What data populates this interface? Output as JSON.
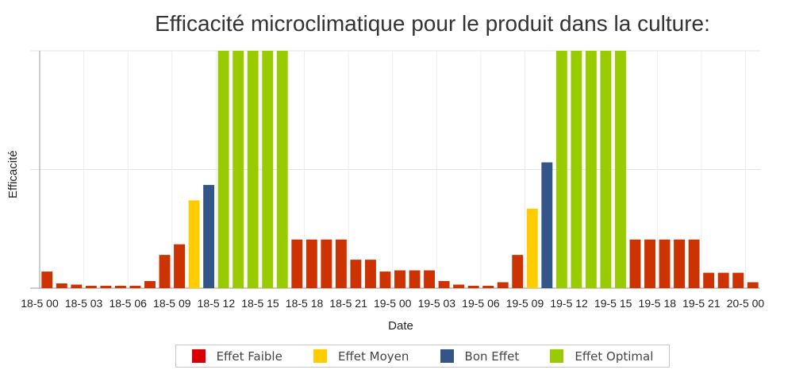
{
  "chart_data": {
    "type": "bar",
    "title": "Efficacité microclimatique pour le produit dans la culture:",
    "xlabel": "Date",
    "ylabel": "Efficacité",
    "ylim": [
      0,
      100
    ],
    "grid": true,
    "legend_position": "bottom",
    "x_tick_labels": [
      "18-5 00",
      "18-5 03",
      "18-5 06",
      "18-5 09",
      "18-5 12",
      "18-5 15",
      "18-5 18",
      "18-5 21",
      "19-5 00",
      "19-5 03",
      "19-5 06",
      "19-5 09",
      "19-5 12",
      "19-5 15",
      "19-5 18",
      "19-5 21",
      "20-5 00"
    ],
    "values": [
      7,
      2,
      1.5,
      1,
      1,
      1,
      1,
      3,
      14,
      18.5,
      37,
      43.5,
      100,
      100,
      100,
      100,
      100,
      20.5,
      20.5,
      20.5,
      20.5,
      12,
      12,
      7,
      7.5,
      7.5,
      7.5,
      3,
      1.5,
      1,
      1,
      2.5,
      14,
      33.5,
      53,
      100,
      100,
      100,
      100,
      100,
      20.5,
      20.5,
      20.5,
      20.5,
      20.5,
      6.5,
      6.5,
      6.5,
      2.5
    ],
    "bar_classes": [
      0,
      0,
      0,
      0,
      0,
      0,
      0,
      0,
      0,
      0,
      1,
      2,
      3,
      3,
      3,
      3,
      3,
      0,
      0,
      0,
      0,
      0,
      0,
      0,
      0,
      0,
      0,
      0,
      0,
      0,
      0,
      0,
      0,
      1,
      2,
      3,
      3,
      3,
      3,
      3,
      0,
      0,
      0,
      0,
      0,
      0,
      0,
      0,
      0
    ],
    "class_colors": [
      "#cc3300",
      "#ffcc00",
      "#335588",
      "#99cc00"
    ],
    "legend": [
      {
        "name": "Effet Faible",
        "color": "#d80000"
      },
      {
        "name": "Effet Moyen",
        "color": "#ffcc00"
      },
      {
        "name": "Bon Effet",
        "color": "#335588"
      },
      {
        "name": "Effet Optimal",
        "color": "#99cc00"
      }
    ]
  }
}
